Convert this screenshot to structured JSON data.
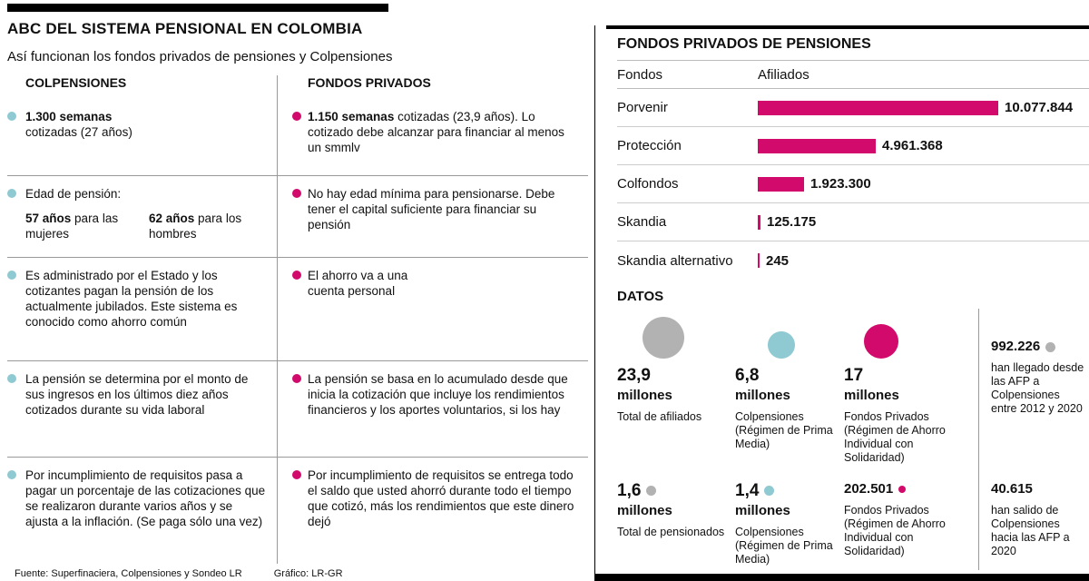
{
  "meta": {
    "title": "ABC DEL SISTEMA PENSIONAL EN COLOMBIA",
    "subtitle": "Así funcionan los fondos privados de pensiones y Colpensiones",
    "source": "Fuente: Superfinaciera, Colpensiones y Sondeo LR",
    "credit": "Gráfico: LR-GR"
  },
  "colors": {
    "pink": "#d20a6b",
    "teal": "#8fc9d1",
    "gray": "#b2b2b2"
  },
  "comparison": {
    "left_header": "COLPENSIONES",
    "right_header": "FONDOS PRIVADOS",
    "rows": [
      {
        "left_bold": "1.300 semanas",
        "left_text": "cotizadas (27 años)",
        "right_bold": "1.150 semanas",
        "right_text": "cotizadas (23,9 años). Lo cotizado debe alcanzar para financiar al menos un smmlv"
      },
      {
        "left_intro": "Edad de pensión:",
        "left_col1_bold": "57 años",
        "left_col1_text": "para las mujeres",
        "left_col2_bold": "62 años",
        "left_col2_text": "para los hombres",
        "right_text": "No hay edad mínima para pensionarse. Debe tener el capital suficiente para financiar su pensión"
      },
      {
        "left_text": "Es administrado por el Estado y los cotizantes pagan la pensión de los actualmente jubilados. Este sistema es conocido como ahorro común",
        "right_text": "El ahorro va a una\ncuenta personal"
      },
      {
        "left_text": "La pensión se determina por el monto de sus ingresos en los últimos diez años cotizados durante su vida laboral",
        "right_text": "La pensión se basa en lo acumulado desde que inicia la cotización que incluye los rendimientos financieros y los aportes voluntarios, si los hay"
      },
      {
        "left_text": "Por incumplimiento de requisitos pasa a pagar un porcentaje de las cotizaciones que se realizaron durante varios años y se ajusta a la inflación. (Se paga sólo una vez)",
        "right_text": "Por incumplimiento de requisitos se entrega todo el saldo que usted ahorró durante todo el tiempo que cotizó, más los rendimientos que este dinero dejó"
      }
    ]
  },
  "chart_data": {
    "type": "bar",
    "orientation": "horizontal",
    "title": "FONDOS PRIVADOS DE PENSIONES",
    "col_headers": [
      "Fondos",
      "Afiliados"
    ],
    "categories": [
      "Porvenir",
      "Protección",
      "Colfondos",
      "Skandia",
      "Skandia alternativo"
    ],
    "values": [
      10077844,
      4961368,
      1923300,
      125175,
      245
    ],
    "value_labels": [
      "10.077.844",
      "4.961.368",
      "1.923.300",
      "125.175",
      "245"
    ],
    "bar_color": "#d20a6b",
    "xlim": [
      0,
      10077844
    ],
    "grid": false,
    "legend": false
  },
  "datos": {
    "title": "DATOS",
    "items": [
      {
        "value": "23,9",
        "unit": "millones",
        "desc": "Total de afiliados",
        "marker": "gray-circle-large"
      },
      {
        "value": "6,8",
        "unit": "millones",
        "desc": "Colpensiones (Régimen de Prima Media)",
        "marker": "teal-circle-medium"
      },
      {
        "value": "17",
        "unit": "millones",
        "desc": "Fondos Privados (Régimen de Ahorro Individual con Solidaridad)",
        "marker": "pink-circle-medium"
      },
      {
        "value": "992.226",
        "unit": "",
        "desc": "han llegado desde las AFP a Colpensiones entre 2012 y 2020",
        "marker": "gray-dot"
      },
      {
        "value": "1,6",
        "unit": "millones",
        "desc": "Total de pensionados",
        "marker": "gray-dot"
      },
      {
        "value": "1,4",
        "unit": "millones",
        "desc": "Colpensiones (Régimen de Prima Media)",
        "marker": "teal-dot"
      },
      {
        "value": "202.501",
        "unit": "",
        "desc": "Fondos Privados (Régimen de Ahorro Individual con Solidaridad)",
        "marker": "pink-dot"
      },
      {
        "value": "40.615",
        "unit": "",
        "desc": "han salido de Colpensiones hacia las AFP a 2020",
        "marker": "none"
      }
    ]
  }
}
